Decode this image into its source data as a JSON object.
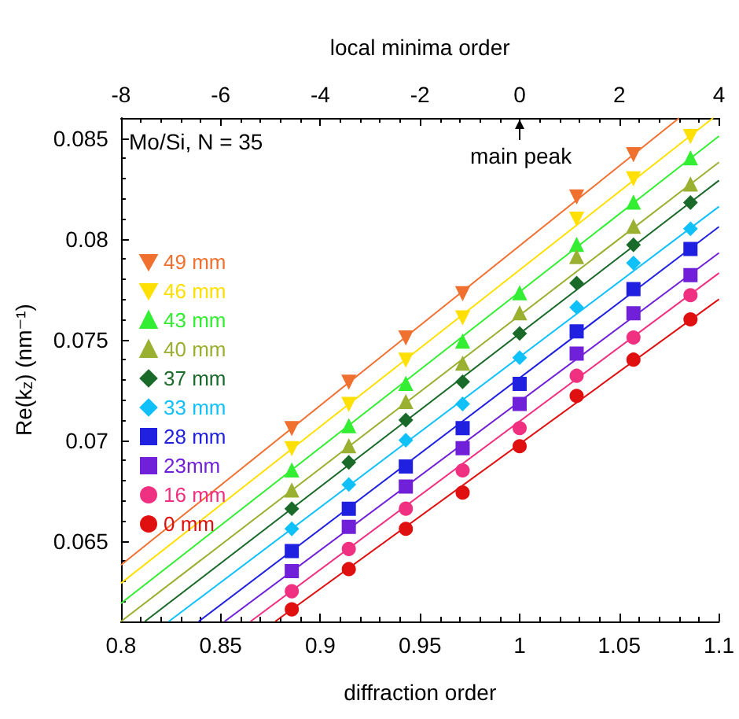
{
  "chart_data": {
    "type": "scatter",
    "xlabel": "diffraction order",
    "ylabel": "Re(k$_{z}$) (nm⁻¹)",
    "x2label": "local minima order",
    "xlim": [
      0.8,
      1.1
    ],
    "xticks": [
      0.8,
      0.85,
      0.9,
      0.95,
      1,
      1.05,
      1.1
    ],
    "x2lim": [
      -8,
      4
    ],
    "x2ticks": [
      -8,
      -6,
      -4,
      -2,
      0,
      2,
      4
    ],
    "ylim": [
      0.061,
      0.086
    ],
    "yticks": [
      0.065,
      0.07,
      0.075,
      0.08,
      0.085
    ],
    "grid": false,
    "legend": "left",
    "x": [
      0.8857,
      0.9143,
      0.9429,
      0.9714,
      1.0,
      1.0286,
      1.0571,
      1.0857
    ],
    "annotations": [
      "Mo/Si, N = 35",
      "main peak"
    ],
    "series": [
      {
        "name": "49 mm",
        "color": "#f07030",
        "marker": "triangle-down",
        "values": [
          0.0706,
          0.0729,
          0.0751,
          0.0773,
          null,
          0.0821,
          0.0842,
          null
        ]
      },
      {
        "name": "46 mm",
        "color": "#ffe000",
        "marker": "triangle-down",
        "values": [
          0.0696,
          0.0718,
          0.074,
          0.0761,
          null,
          0.081,
          0.083,
          0.0851
        ]
      },
      {
        "name": "43 mm",
        "color": "#33ee33",
        "marker": "triangle",
        "values": [
          0.0685,
          0.0707,
          0.0728,
          0.0749,
          0.0773,
          0.0797,
          0.0818,
          0.084
        ]
      },
      {
        "name": "40 mm",
        "color": "#99b030",
        "marker": "triangle",
        "values": [
          0.0675,
          0.0697,
          0.0719,
          0.0738,
          0.0763,
          0.0791,
          0.0806,
          0.0827
        ]
      },
      {
        "name": "37 mm",
        "color": "#1a6a2a",
        "marker": "diamond",
        "values": [
          0.0666,
          0.0689,
          0.071,
          0.0729,
          0.0753,
          0.0778,
          0.0797,
          0.0818
        ]
      },
      {
        "name": "33 mm",
        "color": "#10c0f8",
        "marker": "diamond",
        "values": [
          0.0656,
          0.0678,
          0.07,
          0.0718,
          0.0741,
          0.0766,
          0.0788,
          0.0805
        ]
      },
      {
        "name": "28 mm",
        "color": "#2020e0",
        "marker": "square",
        "values": [
          0.0645,
          0.0666,
          0.0687,
          0.0706,
          0.0728,
          0.0754,
          0.0775,
          0.0795
        ]
      },
      {
        "name": "23mm",
        "color": "#7020d8",
        "marker": "square",
        "values": [
          0.0635,
          0.0657,
          0.0677,
          0.0696,
          0.0718,
          0.0743,
          0.0763,
          0.0782
        ]
      },
      {
        "name": "16 mm",
        "color": "#f03080",
        "marker": "circle",
        "values": [
          0.0625,
          0.0646,
          0.0666,
          0.0685,
          0.0706,
          0.0732,
          0.0751,
          0.0772
        ]
      },
      {
        "name": "0 mm",
        "color": "#e01010",
        "marker": "circle",
        "values": [
          0.0616,
          0.0636,
          0.0656,
          0.0674,
          0.0697,
          0.0722,
          0.074,
          0.076
        ]
      },
      {
        "type": "line",
        "marker": "none",
        "color": "#f07030",
        "x": [
          0.8,
          1.08
        ],
        "values": [
          0.0638,
          0.086
        ]
      },
      {
        "type": "line",
        "marker": "none",
        "color": "#ffe000",
        "x": [
          0.8,
          1.097
        ],
        "values": [
          0.0629,
          0.086
        ]
      },
      {
        "type": "line",
        "marker": "none",
        "color": "#33ee33",
        "x": [
          0.8,
          1.1
        ],
        "values": [
          0.0619,
          0.0851
        ]
      },
      {
        "type": "line",
        "marker": "none",
        "color": "#99b030",
        "x": [
          0.8,
          1.1
        ],
        "values": [
          0.061,
          0.0838
        ]
      },
      {
        "type": "line",
        "marker": "none",
        "color": "#1a6a2a",
        "x": [
          0.812,
          1.1
        ],
        "values": [
          0.061,
          0.0829
        ]
      },
      {
        "type": "line",
        "marker": "none",
        "color": "#10c0f8",
        "x": [
          0.824,
          1.1
        ],
        "values": [
          0.061,
          0.0816
        ]
      },
      {
        "type": "line",
        "marker": "none",
        "color": "#2020e0",
        "x": [
          0.839,
          1.1
        ],
        "values": [
          0.061,
          0.0806
        ]
      },
      {
        "type": "line",
        "marker": "none",
        "color": "#7020d8",
        "x": [
          0.852,
          1.1
        ],
        "values": [
          0.061,
          0.0793
        ]
      },
      {
        "type": "line",
        "marker": "none",
        "color": "#f03080",
        "x": [
          0.865,
          1.1
        ],
        "values": [
          0.061,
          0.0783
        ]
      },
      {
        "type": "line",
        "marker": "none",
        "color": "#e01010",
        "x": [
          0.8774,
          1.1
        ],
        "values": [
          0.061,
          0.077
        ]
      }
    ]
  }
}
